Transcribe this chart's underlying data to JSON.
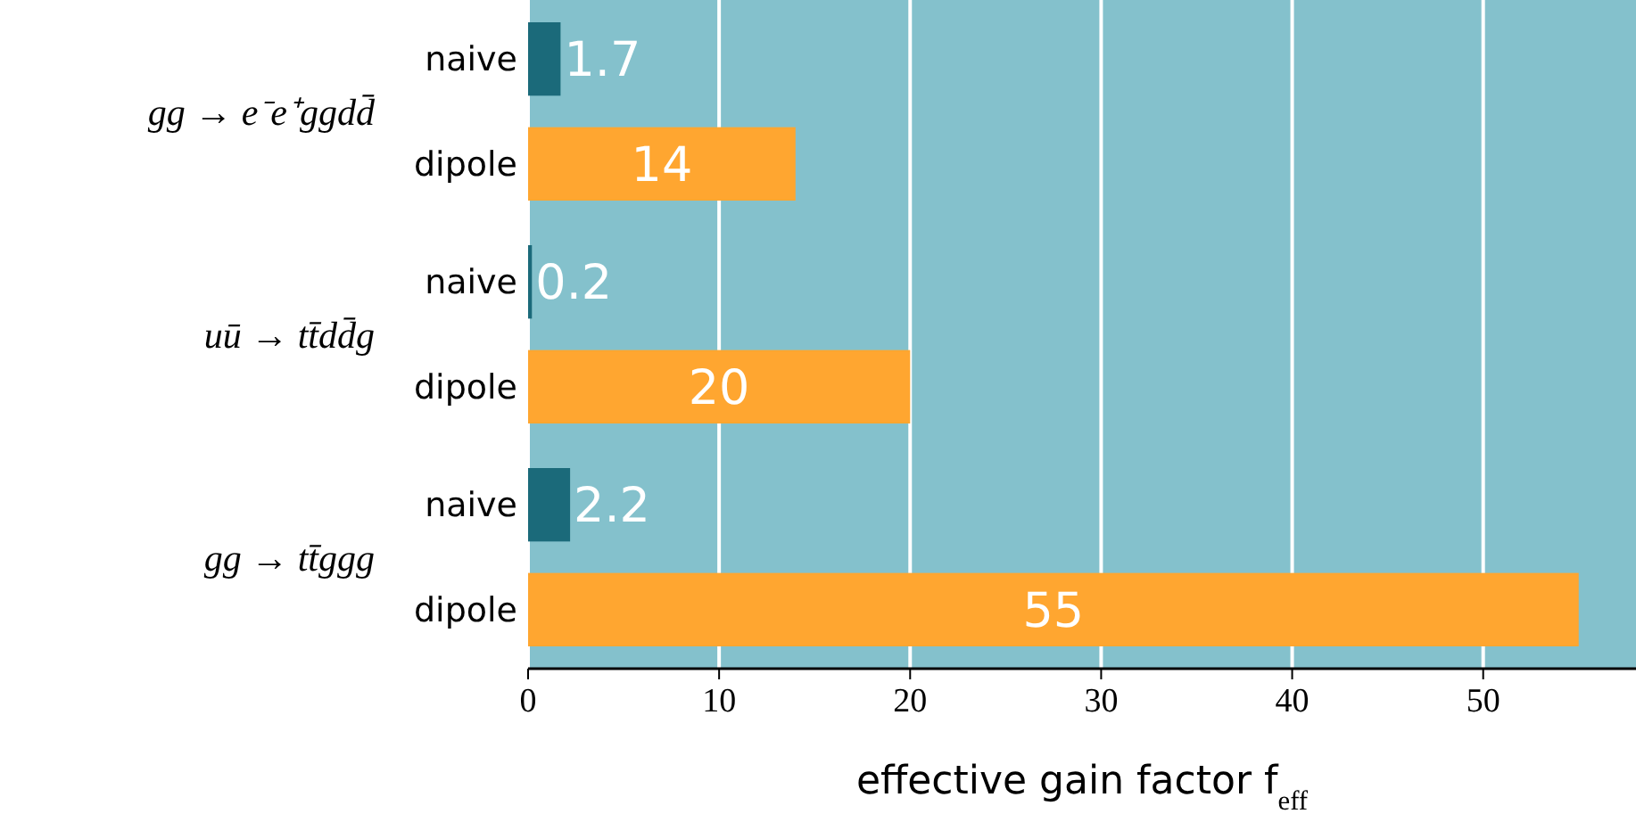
{
  "chart_data": {
    "type": "bar",
    "orientation": "horizontal",
    "categories": [
      "gg → e⁻e⁺ggdd̄",
      "uū → tt̄dd̄g",
      "gg → tt̄ggg"
    ],
    "series": [
      {
        "name": "naive",
        "color": "#1b6a7a",
        "values": [
          1.7,
          0.2,
          2.2
        ]
      },
      {
        "name": "dipole",
        "color": "#ffa630",
        "values": [
          14,
          20,
          55
        ]
      }
    ],
    "xlim": [
      0,
      58
    ],
    "xticks": [
      0,
      10,
      20,
      30,
      40,
      50
    ],
    "xlabel": "effective gain factor f$_{eff}$",
    "grid": "x",
    "data_labels": true
  }
}
